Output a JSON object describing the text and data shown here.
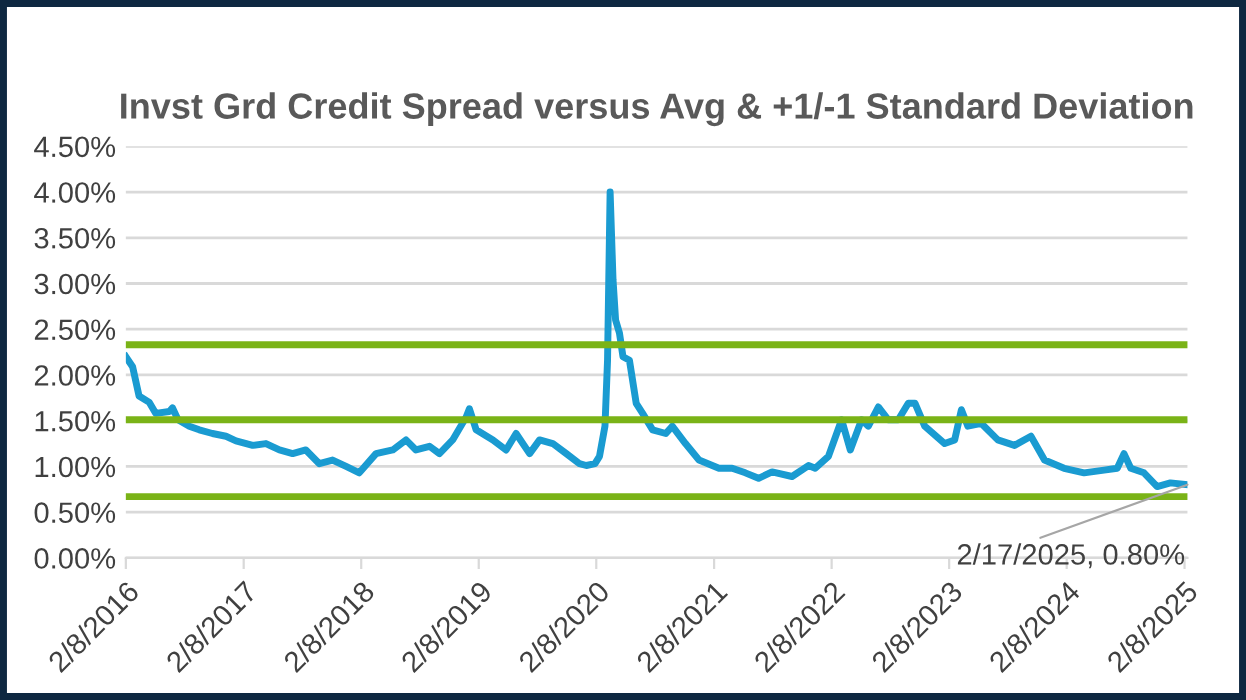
{
  "chart_data": {
    "type": "line",
    "title": "Invst Grd Credit Spread versus Avg & +1/-1 Standard Deviation",
    "x": [
      "2016-02-08",
      "2016-02-29",
      "2016-03-20",
      "2016-04-21",
      "2016-05-11",
      "2016-06-22",
      "2016-07-02",
      "2016-07-19",
      "2016-08-23",
      "2016-09-23",
      "2016-11-03",
      "2016-12-15",
      "2017-01-15",
      "2017-03-08",
      "2017-04-18",
      "2017-05-30",
      "2017-07-10",
      "2017-08-20",
      "2017-10-01",
      "2017-11-11",
      "2017-12-23",
      "2018-02-02",
      "2018-03-26",
      "2018-05-17",
      "2018-06-27",
      "2018-07-28",
      "2018-09-08",
      "2018-10-09",
      "2018-11-19",
      "2018-12-31",
      "2019-01-10",
      "2019-01-31",
      "2019-03-24",
      "2019-05-04",
      "2019-06-04",
      "2019-07-16",
      "2019-08-16",
      "2019-09-26",
      "2019-11-07",
      "2019-12-18",
      "2020-01-08",
      "2020-02-04",
      "2020-02-18",
      "2020-03-06",
      "2020-03-14",
      "2020-03-22",
      "2020-03-31",
      "2020-04-08",
      "2020-04-20",
      "2020-05-01",
      "2020-05-21",
      "2020-06-11",
      "2020-07-01",
      "2020-08-01",
      "2020-09-11",
      "2020-10-01",
      "2020-11-11",
      "2020-12-23",
      "2021-02-23",
      "2021-04-05",
      "2021-05-16",
      "2021-06-26",
      "2021-08-07",
      "2021-10-08",
      "2021-11-28",
      "2021-12-19",
      "2022-01-29",
      "2022-03-11",
      "2022-04-07",
      "2022-05-12",
      "2022-06-02",
      "2022-07-03",
      "2022-08-03",
      "2022-09-03",
      "2022-10-04",
      "2022-10-25",
      "2022-11-24",
      "2023-01-25",
      "2023-02-25",
      "2023-03-18",
      "2023-04-07",
      "2023-05-19",
      "2023-07-09",
      "2023-08-30",
      "2023-10-20",
      "2023-12-01",
      "2024-01-31",
      "2024-04-02",
      "2024-06-03",
      "2024-07-14",
      "2024-08-04",
      "2024-08-25",
      "2024-10-05",
      "2024-11-15",
      "2024-12-26",
      "2025-02-17"
    ],
    "series": [
      {
        "color": "#1a9bd1",
        "values": [
          2.2,
          2.09,
          1.77,
          1.7,
          1.58,
          1.6,
          1.64,
          1.51,
          1.44,
          1.4,
          1.36,
          1.33,
          1.28,
          1.23,
          1.25,
          1.18,
          1.14,
          1.18,
          1.03,
          1.07,
          1.0,
          0.93,
          1.14,
          1.18,
          1.29,
          1.18,
          1.22,
          1.14,
          1.29,
          1.54,
          1.63,
          1.4,
          1.29,
          1.18,
          1.36,
          1.14,
          1.29,
          1.25,
          1.14,
          1.03,
          1.01,
          1.03,
          1.11,
          1.44,
          2.16,
          4.0,
          3.04,
          2.6,
          2.46,
          2.2,
          2.16,
          1.69,
          1.58,
          1.4,
          1.36,
          1.44,
          1.25,
          1.07,
          0.98,
          0.98,
          0.93,
          0.87,
          0.94,
          0.89,
          1.01,
          0.98,
          1.11,
          1.51,
          1.18,
          1.51,
          1.44,
          1.65,
          1.51,
          1.51,
          1.69,
          1.69,
          1.44,
          1.25,
          1.29,
          1.62,
          1.44,
          1.47,
          1.29,
          1.23,
          1.33,
          1.07,
          0.98,
          0.93,
          0.96,
          0.98,
          1.14,
          0.98,
          0.93,
          0.78,
          0.82,
          0.8
        ]
      }
    ],
    "xlim": [
      "2016-02-08",
      "2025-02-17"
    ],
    "xticks": [
      {
        "value": "2016-02-08",
        "label": "2/8/2016"
      },
      {
        "value": "2017-02-08",
        "label": "2/8/2017"
      },
      {
        "value": "2018-02-08",
        "label": "2/8/2018"
      },
      {
        "value": "2019-02-08",
        "label": "2/8/2019"
      },
      {
        "value": "2020-02-08",
        "label": "2/8/2020"
      },
      {
        "value": "2021-02-08",
        "label": "2/8/2021"
      },
      {
        "value": "2022-02-08",
        "label": "2/8/2022"
      },
      {
        "value": "2023-02-08",
        "label": "2/8/2023"
      },
      {
        "value": "2024-02-08",
        "label": "2/8/2024"
      },
      {
        "value": "2025-02-08",
        "label": "2/8/2025"
      }
    ],
    "ylim": [
      0,
      4.5
    ],
    "yticks": [
      {
        "value": 0,
        "label": "0.00%"
      },
      {
        "value": 0.5,
        "label": "0.50%"
      },
      {
        "value": 1,
        "label": "1.00%"
      },
      {
        "value": 1.5,
        "label": "1.50%"
      },
      {
        "value": 2,
        "label": "2.00%"
      },
      {
        "value": 2.5,
        "label": "2.50%"
      },
      {
        "value": 3,
        "label": "3.00%"
      },
      {
        "value": 3.5,
        "label": "3.50%"
      },
      {
        "value": 4,
        "label": "4.00%"
      },
      {
        "value": 4.5,
        "label": "4.50%"
      }
    ],
    "ref_lines": [
      {
        "axis": "y",
        "value": 2.33,
        "color": "#7ab317"
      },
      {
        "axis": "y",
        "value": 1.51,
        "color": "#7ab317"
      },
      {
        "axis": "y",
        "value": 0.67,
        "color": "#7ab317"
      }
    ],
    "annotations": [
      {
        "text": "2/17/2025, 0.80%",
        "x": "2025-02-17",
        "y": 0.8
      }
    ],
    "grid": "y",
    "legend": false,
    "marker": "none",
    "line_style": "solid"
  }
}
